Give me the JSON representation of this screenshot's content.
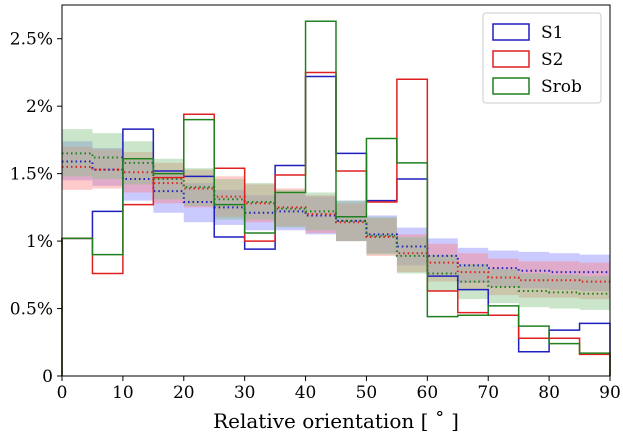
{
  "chart_data": {
    "type": "histogram",
    "title": "",
    "xlabel": "Relative orientation [$^\\circ$]",
    "xlabel_text": "Relative orientation [ ˚ ]",
    "ylabel": "",
    "xlim": [
      0,
      90
    ],
    "ylim": [
      0,
      0.0275
    ],
    "xticks": [
      0,
      10,
      20,
      30,
      40,
      50,
      60,
      70,
      80,
      90
    ],
    "xtick_labels": [
      "0",
      "10",
      "20",
      "30",
      "40",
      "50",
      "60",
      "70",
      "80",
      "90"
    ],
    "yticks": [
      0,
      0.005,
      0.01,
      0.015,
      0.02,
      0.025
    ],
    "ytick_labels": [
      "0",
      "0.5%",
      "1%",
      "1.5%",
      "2%",
      "2.5%"
    ],
    "bin_edges": [
      0,
      5,
      10,
      15,
      20,
      25,
      30,
      35,
      40,
      45,
      50,
      55,
      60,
      65,
      70,
      75,
      80,
      85,
      90
    ],
    "legend_position": "top-right",
    "series": [
      {
        "name": "S1",
        "color": "#1f1fbf",
        "band_color": "#8080ff",
        "values": [
          0.0102,
          0.0122,
          0.0183,
          0.0152,
          0.0148,
          0.0103,
          0.0094,
          0.0156,
          0.0222,
          0.0165,
          0.013,
          0.0146,
          0.0074,
          0.0064,
          0.0045,
          0.0018,
          0.0034,
          0.0039
        ],
        "random_mean": [
          0.0159,
          0.0153,
          0.0146,
          0.0137,
          0.0129,
          0.0125,
          0.0121,
          0.0122,
          0.0119,
          0.0115,
          0.0105,
          0.0096,
          0.0089,
          0.0082,
          0.008,
          0.0078,
          0.0077,
          0.0077
        ],
        "random_low": [
          0.0145,
          0.0141,
          0.013,
          0.0121,
          0.0114,
          0.0112,
          0.0108,
          0.0108,
          0.0105,
          0.01,
          0.0091,
          0.0082,
          0.0075,
          0.0069,
          0.0066,
          0.0065,
          0.0064,
          0.0063
        ],
        "random_high": [
          0.0174,
          0.0169,
          0.016,
          0.0151,
          0.0143,
          0.0138,
          0.0134,
          0.0135,
          0.0133,
          0.013,
          0.0119,
          0.011,
          0.0102,
          0.0095,
          0.0093,
          0.0092,
          0.0091,
          0.009
        ]
      },
      {
        "name": "S2",
        "color": "#e02020",
        "band_color": "#ff8080",
        "values": [
          0.0102,
          0.0076,
          0.0127,
          0.0147,
          0.0194,
          0.0154,
          0.01,
          0.0149,
          0.0225,
          0.0152,
          0.0129,
          0.022,
          0.0063,
          0.0047,
          0.0045,
          0.0028,
          0.0028,
          0.0016
        ],
        "random_mean": [
          0.0155,
          0.0153,
          0.0151,
          0.0143,
          0.0139,
          0.0133,
          0.0128,
          0.0125,
          0.012,
          0.0114,
          0.0103,
          0.0091,
          0.0084,
          0.0077,
          0.0073,
          0.0071,
          0.0071,
          0.007
        ],
        "random_low": [
          0.0138,
          0.0139,
          0.0136,
          0.0128,
          0.0125,
          0.0118,
          0.0114,
          0.0111,
          0.0106,
          0.01,
          0.0089,
          0.0077,
          0.007,
          0.0064,
          0.006,
          0.0058,
          0.0058,
          0.0057
        ],
        "random_high": [
          0.017,
          0.0168,
          0.0166,
          0.0158,
          0.0153,
          0.0148,
          0.0142,
          0.0139,
          0.0134,
          0.0128,
          0.0117,
          0.0105,
          0.0098,
          0.0091,
          0.0087,
          0.0085,
          0.0085,
          0.0084
        ]
      },
      {
        "name": "Srob",
        "color": "#208020",
        "band_color": "#80c080",
        "values": [
          0.0102,
          0.009,
          0.0161,
          0.015,
          0.019,
          0.0127,
          0.0106,
          0.0136,
          0.0263,
          0.0118,
          0.0176,
          0.0158,
          0.0044,
          0.0045,
          0.0052,
          0.0037,
          0.0024,
          0.0017
        ],
        "random_mean": [
          0.0165,
          0.0162,
          0.0158,
          0.0146,
          0.014,
          0.0131,
          0.0129,
          0.0124,
          0.0122,
          0.0115,
          0.0104,
          0.0089,
          0.0076,
          0.007,
          0.0066,
          0.0063,
          0.0062,
          0.0061
        ],
        "random_low": [
          0.0148,
          0.0146,
          0.0142,
          0.0131,
          0.0126,
          0.0116,
          0.0116,
          0.011,
          0.0108,
          0.01,
          0.009,
          0.0076,
          0.0063,
          0.0057,
          0.0054,
          0.0051,
          0.005,
          0.0049
        ],
        "random_high": [
          0.0183,
          0.018,
          0.0174,
          0.0161,
          0.0154,
          0.0146,
          0.0143,
          0.0138,
          0.0136,
          0.013,
          0.0118,
          0.0103,
          0.009,
          0.0083,
          0.0079,
          0.0076,
          0.0075,
          0.0074
        ]
      }
    ]
  }
}
